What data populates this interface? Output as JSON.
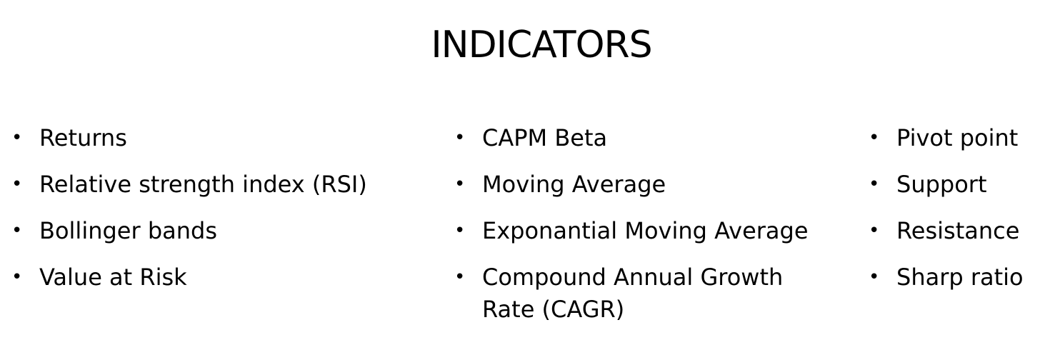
{
  "title": "INDICATORS",
  "bullet_glyph": "•",
  "columns": [
    {
      "items": [
        {
          "label": "Returns"
        },
        {
          "label": "Relative strength index (RSI)"
        },
        {
          "label": "Bollinger bands"
        },
        {
          "label": "Value at Risk"
        }
      ]
    },
    {
      "items": [
        {
          "label": "CAPM Beta"
        },
        {
          "label": "Moving Average"
        },
        {
          "label": "Exponantial Moving Average"
        },
        {
          "label": "Compound Annual Growth Rate (CAGR)"
        }
      ]
    },
    {
      "items": [
        {
          "label": "Pivot point"
        },
        {
          "label": "Support"
        },
        {
          "label": "Resistance"
        },
        {
          "label": "Sharp ratio"
        }
      ]
    }
  ]
}
